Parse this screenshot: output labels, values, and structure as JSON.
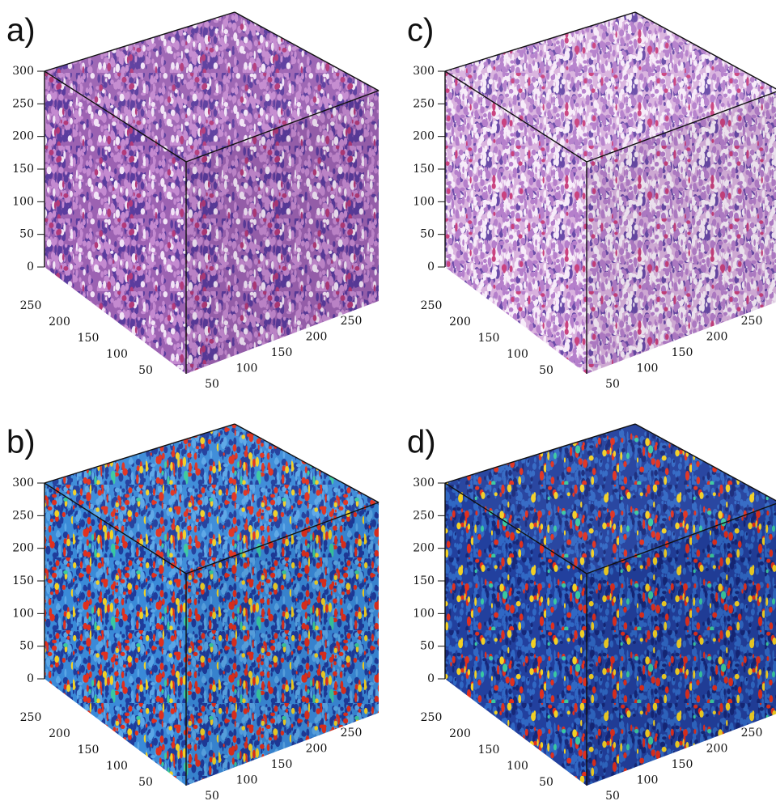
{
  "panels": [
    {
      "label": "a)",
      "z_ticks": [
        "0",
        "50",
        "100",
        "150",
        "200",
        "250",
        "300"
      ],
      "left_ticks": [
        "50",
        "100",
        "150",
        "200",
        "250"
      ],
      "right_ticks": [
        "50",
        "100",
        "150",
        "200",
        "250"
      ]
    },
    {
      "label": "c)",
      "z_ticks": [
        "0",
        "50",
        "100",
        "150",
        "200",
        "250",
        "300"
      ],
      "left_ticks": [
        "50",
        "100",
        "150",
        "200",
        "250"
      ],
      "right_ticks": [
        "50",
        "100",
        "150",
        "200",
        "250"
      ]
    },
    {
      "label": "b)",
      "z_ticks": [
        "0",
        "50",
        "100",
        "150",
        "200",
        "250",
        "300"
      ],
      "left_ticks": [
        "50",
        "100",
        "150",
        "200",
        "250"
      ],
      "right_ticks": [
        "50",
        "100",
        "150",
        "200",
        "250"
      ]
    },
    {
      "label": "d)",
      "z_ticks": [
        "0",
        "50",
        "100",
        "150",
        "200",
        "250",
        "300"
      ],
      "left_ticks": [
        "50",
        "100",
        "150",
        "200",
        "250"
      ],
      "right_ticks": [
        "50",
        "100",
        "150",
        "200",
        "250"
      ]
    }
  ]
}
